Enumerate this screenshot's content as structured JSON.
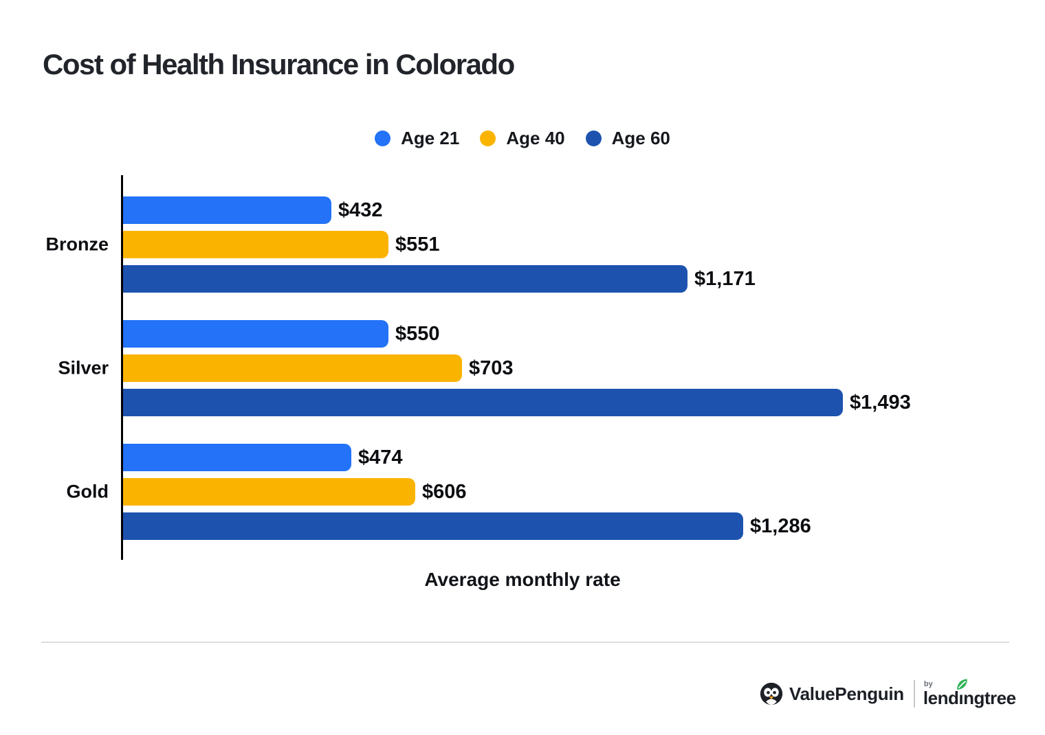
{
  "chart_data": {
    "type": "bar",
    "orientation": "horizontal",
    "title": "Cost of Health Insurance in Colorado",
    "xlabel": "Average monthly rate",
    "ylabel": "",
    "categories": [
      "Bronze",
      "Silver",
      "Gold"
    ],
    "series": [
      {
        "name": "Age 21",
        "color": "#2372F8",
        "values": [
          432,
          550,
          474
        ],
        "labels": [
          "$432",
          "$550",
          "$474"
        ]
      },
      {
        "name": "Age 40",
        "color": "#FAB400",
        "values": [
          551,
          703,
          606
        ],
        "labels": [
          "$551",
          "$703",
          "$606"
        ]
      },
      {
        "name": "Age 60",
        "color": "#1D53AF",
        "values": [
          1171,
          1493,
          1286
        ],
        "labels": [
          "$1,171",
          "$1,493",
          "$1,286"
        ]
      }
    ],
    "xlim": [
      0,
      1560
    ],
    "grid": false,
    "legend_position": "top-center",
    "bar_value_labels": true
  },
  "footer": {
    "valuepenguin": "ValuePenguin",
    "by": "by",
    "lendingtree": "lendingtree",
    "colors": {
      "penguin_black": "#1d2127",
      "beak_orange": "#F6A51F",
      "leaf_green": "#2EB258"
    }
  }
}
